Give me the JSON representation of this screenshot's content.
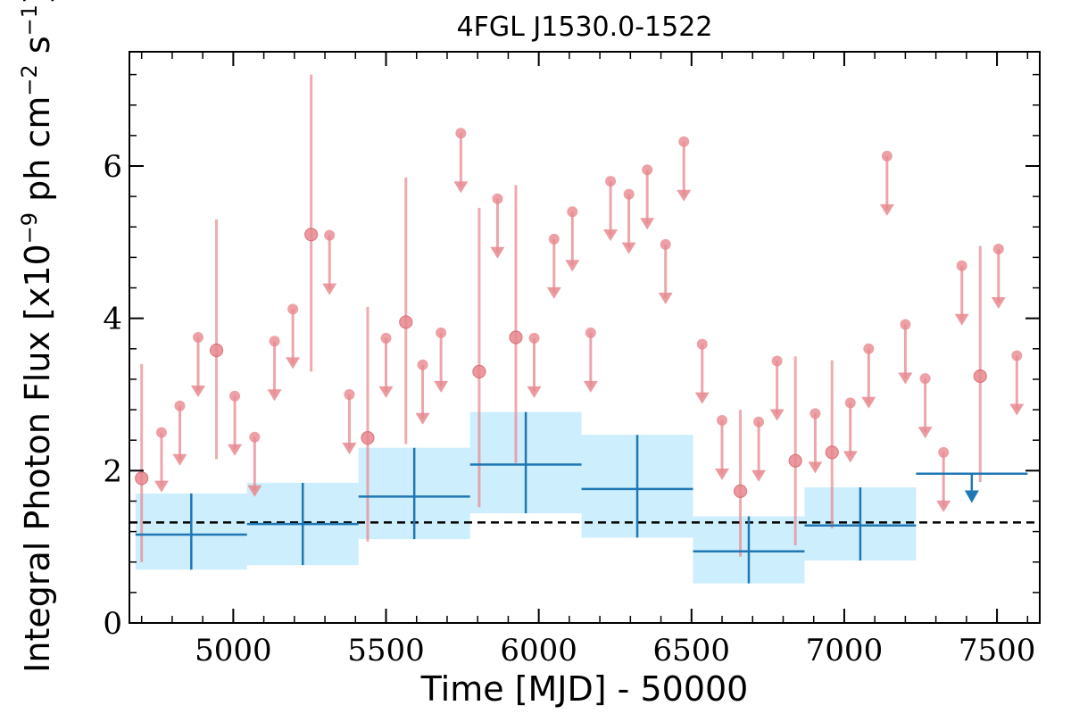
{
  "chart_data": {
    "type": "scatter",
    "title": "4FGL J1530.0-1522",
    "xlabel": "Time [MJD] - 50000",
    "ylabel": "Integral Photon Flux [x10^-9 ph cm^-2 s^-1]",
    "xlim": [
      4660,
      7640
    ],
    "ylim": [
      0,
      7.5
    ],
    "xticks": [
      5000,
      5500,
      6000,
      6500,
      7000,
      7500
    ],
    "yticks": [
      0,
      2,
      4,
      6
    ],
    "mean_flux": 1.32,
    "colors": {
      "short_bins": "#e8888f",
      "long_bins": "#1f77b4",
      "long_band": "#cdeefc",
      "mean_line": "#000000"
    },
    "series": [
      {
        "name": "",
        "kind": "short-bin detections",
        "points": [
          {
            "x": 4700,
            "y": 1.9,
            "ylo": 0.8,
            "yhi": 3.4
          },
          {
            "x": 4945,
            "y": 3.58,
            "ylo": 2.15,
            "yhi": 5.3
          },
          {
            "x": 5255,
            "y": 5.1,
            "ylo": 3.3,
            "yhi": 7.2
          },
          {
            "x": 5440,
            "y": 2.43,
            "ylo": 1.07,
            "yhi": 4.15
          },
          {
            "x": 5565,
            "y": 3.95,
            "ylo": 2.35,
            "yhi": 5.85
          },
          {
            "x": 5805,
            "y": 3.3,
            "ylo": 1.52,
            "yhi": 5.45
          },
          {
            "x": 5925,
            "y": 3.75,
            "ylo": 2.1,
            "yhi": 5.75
          },
          {
            "x": 6660,
            "y": 1.73,
            "ylo": 0.87,
            "yhi": 2.8
          },
          {
            "x": 6840,
            "y": 2.13,
            "ylo": 1.02,
            "yhi": 3.5
          },
          {
            "x": 6960,
            "y": 2.24,
            "ylo": 1.24,
            "yhi": 3.45
          },
          {
            "x": 7445,
            "y": 3.24,
            "ylo": 1.85,
            "yhi": 4.95
          }
        ]
      },
      {
        "name": "",
        "kind": "short-bin upper limits",
        "points": [
          {
            "x": 4765,
            "y": 2.5
          },
          {
            "x": 4825,
            "y": 2.85
          },
          {
            "x": 4885,
            "y": 3.75
          },
          {
            "x": 5005,
            "y": 2.98
          },
          {
            "x": 5070,
            "y": 2.44
          },
          {
            "x": 5135,
            "y": 3.7
          },
          {
            "x": 5195,
            "y": 4.12
          },
          {
            "x": 5315,
            "y": 5.09
          },
          {
            "x": 5380,
            "y": 3.0
          },
          {
            "x": 5500,
            "y": 3.74
          },
          {
            "x": 5620,
            "y": 3.39
          },
          {
            "x": 5680,
            "y": 3.81
          },
          {
            "x": 5745,
            "y": 6.43
          },
          {
            "x": 5865,
            "y": 5.57
          },
          {
            "x": 5985,
            "y": 3.74
          },
          {
            "x": 6050,
            "y": 5.04
          },
          {
            "x": 6110,
            "y": 5.4
          },
          {
            "x": 6170,
            "y": 3.81
          },
          {
            "x": 6235,
            "y": 5.8
          },
          {
            "x": 6295,
            "y": 5.63
          },
          {
            "x": 6355,
            "y": 5.95
          },
          {
            "x": 6415,
            "y": 4.97
          },
          {
            "x": 6475,
            "y": 6.32
          },
          {
            "x": 6535,
            "y": 3.66
          },
          {
            "x": 6600,
            "y": 2.66
          },
          {
            "x": 6720,
            "y": 2.64
          },
          {
            "x": 6780,
            "y": 3.44
          },
          {
            "x": 6905,
            "y": 2.75
          },
          {
            "x": 7020,
            "y": 2.89
          },
          {
            "x": 7080,
            "y": 3.6
          },
          {
            "x": 7140,
            "y": 6.13
          },
          {
            "x": 7200,
            "y": 3.92
          },
          {
            "x": 7265,
            "y": 3.21
          },
          {
            "x": 7325,
            "y": 2.24
          },
          {
            "x": 7385,
            "y": 4.69
          },
          {
            "x": 7505,
            "y": 4.91
          },
          {
            "x": 7565,
            "y": 3.51
          }
        ]
      },
      {
        "name": "",
        "kind": "long-bin detections",
        "bins": [
          {
            "x0": 4680,
            "x1": 5045,
            "y": 1.16,
            "band_lo": 0.7,
            "band_hi": 1.7,
            "err_lo": 0.7,
            "err_hi": 1.7
          },
          {
            "x0": 5045,
            "x1": 5410,
            "y": 1.3,
            "band_lo": 0.76,
            "band_hi": 1.84,
            "err_lo": 0.76,
            "err_hi": 1.84
          },
          {
            "x0": 5410,
            "x1": 5775,
            "y": 1.66,
            "band_lo": 1.1,
            "band_hi": 2.3,
            "err_lo": 1.1,
            "err_hi": 2.3
          },
          {
            "x0": 5775,
            "x1": 6140,
            "y": 2.08,
            "band_lo": 1.44,
            "band_hi": 2.77,
            "err_lo": 1.44,
            "err_hi": 2.77
          },
          {
            "x0": 6140,
            "x1": 6505,
            "y": 1.76,
            "band_lo": 1.12,
            "band_hi": 2.47,
            "err_lo": 1.12,
            "err_hi": 2.47
          },
          {
            "x0": 6505,
            "x1": 6870,
            "y": 0.94,
            "band_lo": 0.52,
            "band_hi": 1.4,
            "err_lo": 0.52,
            "err_hi": 1.4
          },
          {
            "x0": 6870,
            "x1": 7235,
            "y": 1.28,
            "band_lo": 0.82,
            "band_hi": 1.78,
            "err_lo": 0.82,
            "err_hi": 1.78
          }
        ]
      },
      {
        "name": "",
        "kind": "long-bin upper limit",
        "bins": [
          {
            "x0": 7235,
            "x1": 7600,
            "y": 1.96
          }
        ]
      }
    ]
  }
}
